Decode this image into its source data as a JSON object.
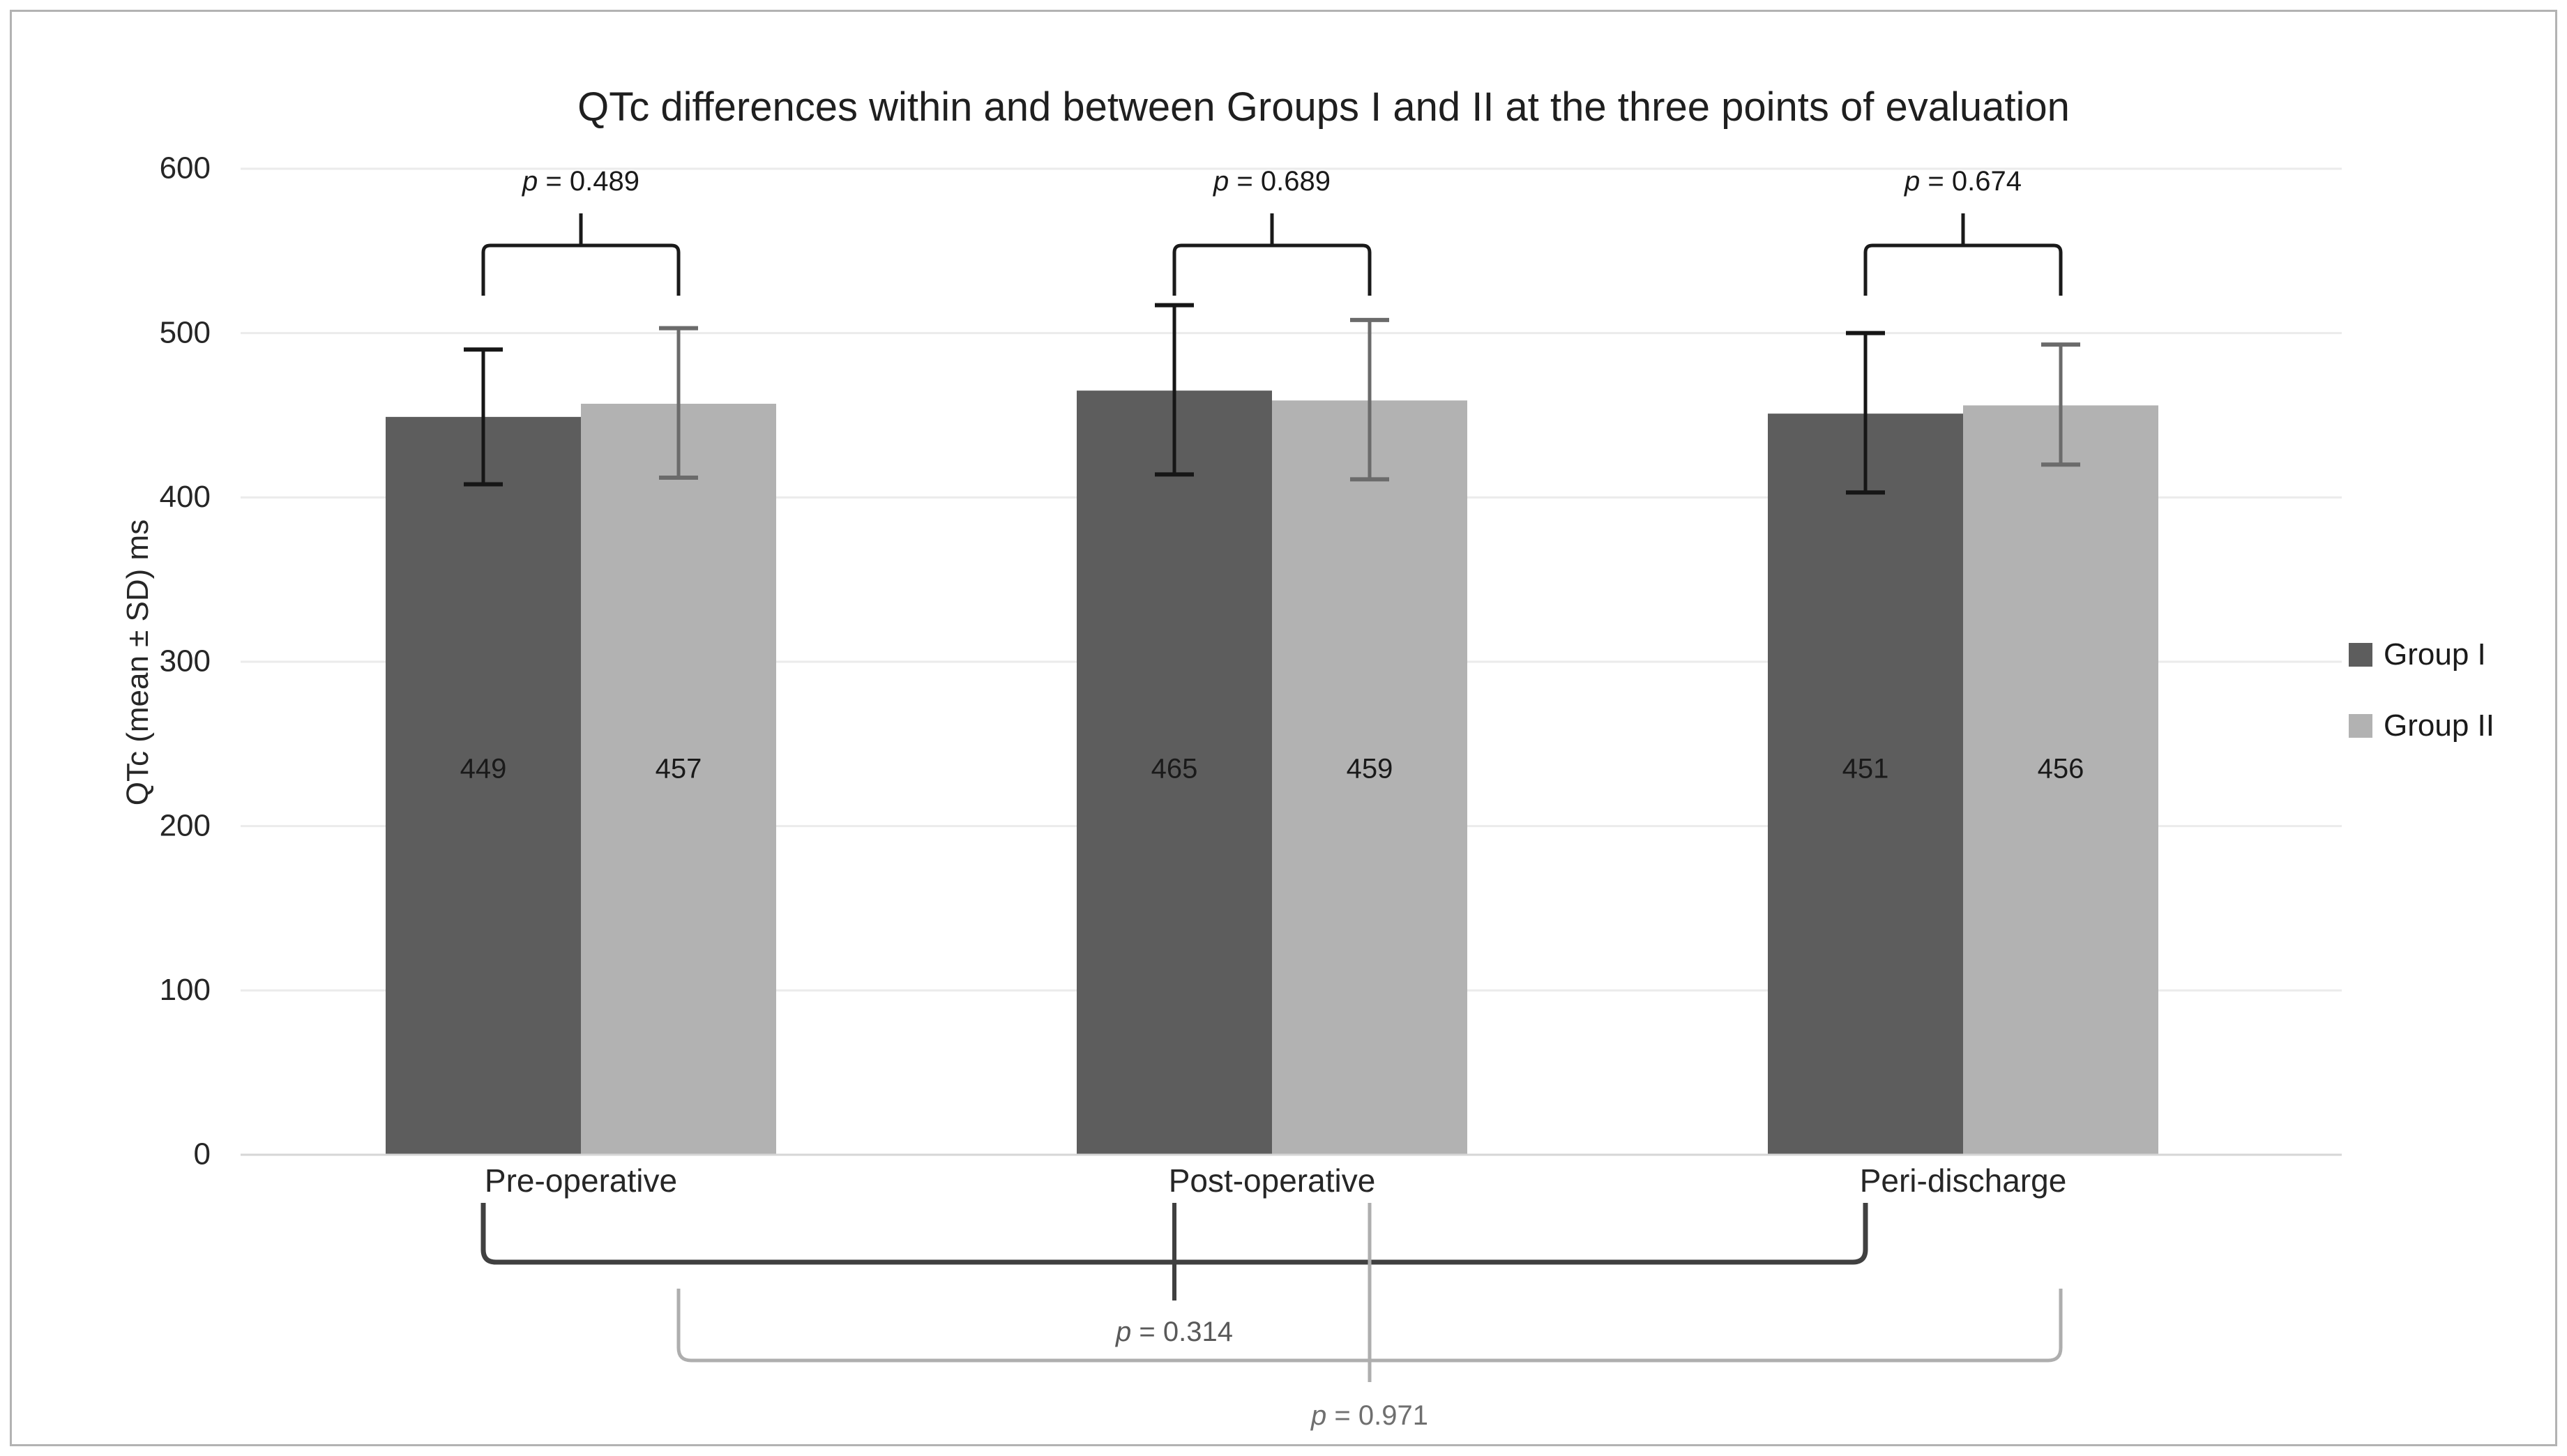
{
  "chart_data": {
    "type": "bar",
    "title": "QTc differences within and between Groups I and II at the three points of evaluation",
    "ylabel": "QTc (mean ± SD) ms",
    "xlabel": "",
    "categories": [
      "Pre-operative",
      "Post-operative",
      "Peri-discharge"
    ],
    "series": [
      {
        "name": "Group I",
        "color": "#5d5d5d",
        "error_color": "#161616",
        "values": [
          449,
          465,
          451
        ],
        "error_top": [
          490,
          517,
          500
        ],
        "error_bottom": [
          408,
          414,
          403
        ]
      },
      {
        "name": "Group II",
        "color": "#b2b2b2",
        "error_color": "#6b6b6b",
        "values": [
          457,
          459,
          456
        ],
        "error_top": [
          503,
          508,
          493
        ],
        "error_bottom": [
          412,
          411,
          420
        ]
      }
    ],
    "y_ticks": [
      0,
      100,
      200,
      300,
      400,
      500,
      600
    ],
    "ylim": [
      0,
      600
    ],
    "grid": true,
    "legend_position": "right",
    "comparisons": {
      "between_groups": [
        "p = 0.489",
        "p = 0.689",
        "p = 0.674"
      ],
      "group1_across_periods": "p = 0.314",
      "group2_across_periods": "p = 0.971"
    },
    "colors": {
      "grid": "#ebebeb",
      "axis": "#d6d6d6",
      "text": "#262626",
      "bar_label": "#1a1a1a",
      "bracket_top": "#1a1a1a",
      "bracket_group1": "#404040",
      "bracket_group2": "#aeaeae",
      "p_label_top": "#1a1a1a",
      "p_label_group1": "#595959",
      "p_label_group2": "#6f6f6f",
      "frame_border": "#b3b3b3"
    }
  }
}
